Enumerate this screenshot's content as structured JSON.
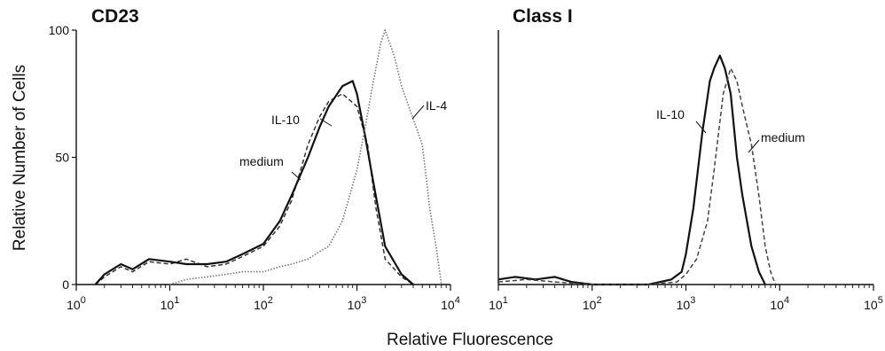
{
  "figure": {
    "xlabel": "Relative Fluorescence",
    "ylabel": "Relative Number of Cells"
  },
  "chart_data": [
    {
      "type": "line",
      "title": "CD23",
      "x_scale": "log",
      "xlim": [
        1,
        10000
      ],
      "ylim": [
        0,
        100
      ],
      "x_ticks": [
        {
          "base": "10",
          "exp": "0"
        },
        {
          "base": "10",
          "exp": "1"
        },
        {
          "base": "10",
          "exp": "2"
        },
        {
          "base": "10",
          "exp": "3"
        },
        {
          "base": "10",
          "exp": "4"
        }
      ],
      "y_ticks": [
        "0",
        "50",
        "100"
      ],
      "y_tick_values": [
        0,
        50,
        100
      ],
      "series": [
        {
          "name": "medium",
          "style": "dashed",
          "color": "#333333",
          "x": [
            1.6,
            2,
            3,
            4,
            6,
            10,
            15,
            25,
            40,
            60,
            100,
            150,
            200,
            250,
            300,
            400,
            500,
            700,
            1000,
            1300,
            1600,
            2000,
            3000,
            4000
          ],
          "y": [
            0,
            3,
            7,
            5,
            9,
            8,
            10,
            7,
            8,
            11,
            15,
            23,
            33,
            45,
            55,
            66,
            72,
            75,
            70,
            55,
            30,
            10,
            3,
            0
          ]
        },
        {
          "name": "IL-10",
          "style": "solid",
          "color": "#111111",
          "x": [
            1.6,
            2,
            3,
            4,
            6,
            10,
            15,
            25,
            40,
            60,
            100,
            150,
            200,
            300,
            400,
            500,
            700,
            900,
            1000,
            1200,
            1500,
            2000,
            3000,
            4000
          ],
          "y": [
            0,
            4,
            8,
            6,
            10,
            9,
            8,
            8,
            9,
            12,
            16,
            25,
            35,
            50,
            62,
            70,
            78,
            80,
            75,
            60,
            40,
            15,
            4,
            0
          ]
        },
        {
          "name": "IL-4",
          "style": "dotted",
          "color": "#777777",
          "x": [
            10,
            15,
            25,
            40,
            60,
            100,
            150,
            200,
            300,
            400,
            500,
            700,
            1000,
            1200,
            1500,
            1800,
            2000,
            2500,
            3000,
            4000,
            5000,
            6000,
            7000,
            8000
          ],
          "y": [
            0,
            2,
            3,
            4,
            5,
            5,
            7,
            8,
            10,
            13,
            15,
            25,
            45,
            60,
            80,
            95,
            100,
            90,
            78,
            65,
            55,
            30,
            15,
            0
          ]
        }
      ],
      "annotations": [
        {
          "text": "IL-10",
          "series": "IL-10"
        },
        {
          "text": "IL-4",
          "series": "IL-4"
        },
        {
          "text": "medium",
          "series": "medium"
        }
      ]
    },
    {
      "type": "line",
      "title": "Class I",
      "x_scale": "log",
      "xlim": [
        10,
        100000
      ],
      "ylim": [
        0,
        100
      ],
      "x_ticks": [
        {
          "base": "10",
          "exp": "1"
        },
        {
          "base": "10",
          "exp": "2"
        },
        {
          "base": "10",
          "exp": "3"
        },
        {
          "base": "10",
          "exp": "4"
        },
        {
          "base": "10",
          "exp": "5"
        }
      ],
      "y_ticks": [],
      "y_tick_values": [],
      "series": [
        {
          "name": "IL-10",
          "style": "solid",
          "color": "#111111",
          "x": [
            10,
            15,
            25,
            40,
            60,
            100,
            200,
            400,
            700,
            900,
            1000,
            1200,
            1500,
            1800,
            2000,
            2300,
            2600,
            3000,
            3500,
            4000,
            5000,
            6000,
            7000
          ],
          "y": [
            2,
            3,
            2,
            3,
            1,
            0,
            0,
            0,
            2,
            5,
            12,
            30,
            60,
            80,
            85,
            90,
            85,
            75,
            50,
            35,
            15,
            5,
            0
          ]
        },
        {
          "name": "medium",
          "style": "dashed",
          "color": "#444444",
          "x": [
            10,
            20,
            40,
            100,
            200,
            400,
            800,
            1000,
            1300,
            1700,
            2000,
            2500,
            3000,
            3500,
            4000,
            5000,
            6000,
            7000,
            8000,
            9000
          ],
          "y": [
            1,
            2,
            1,
            0,
            0,
            0,
            1,
            4,
            10,
            25,
            45,
            75,
            85,
            80,
            70,
            55,
            35,
            15,
            5,
            0
          ]
        }
      ],
      "annotations": [
        {
          "text": "IL-10",
          "series": "IL-10"
        },
        {
          "text": "medium",
          "series": "medium"
        }
      ]
    }
  ]
}
